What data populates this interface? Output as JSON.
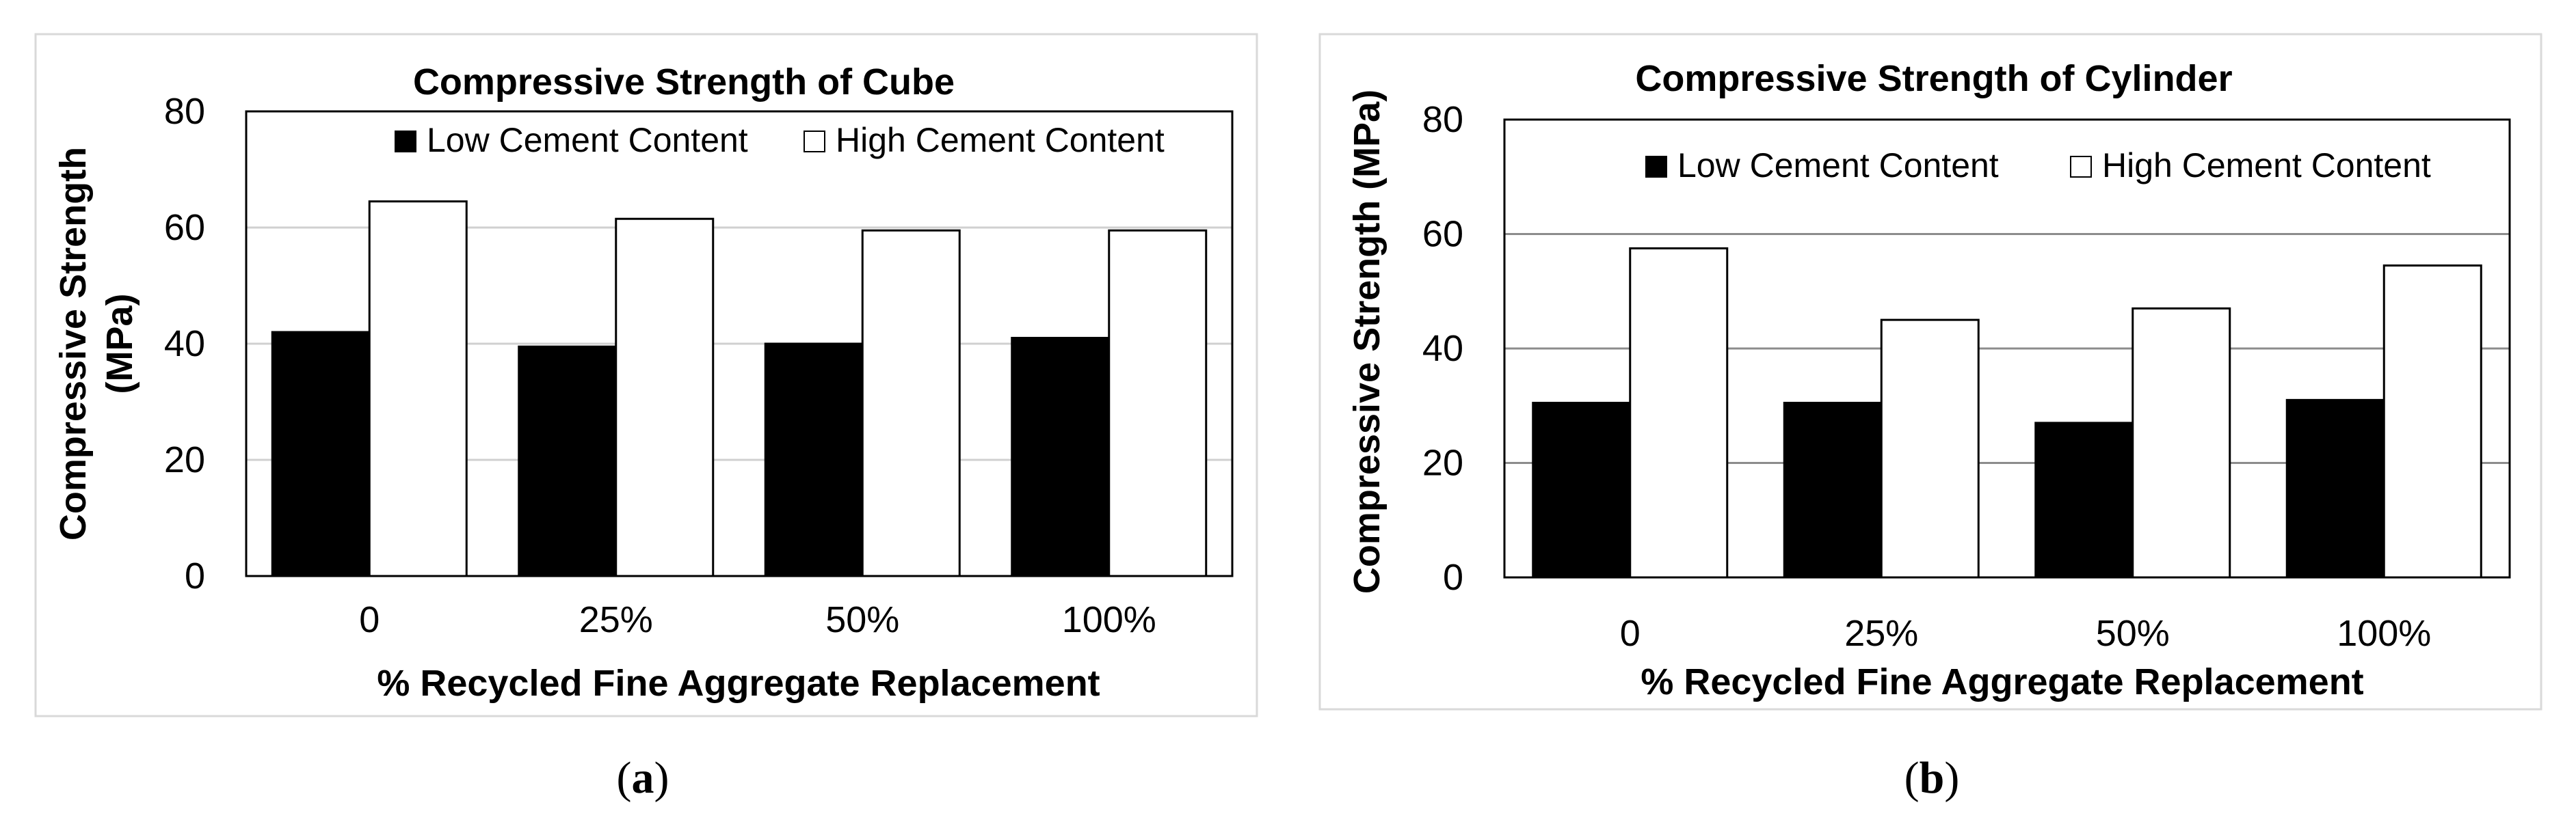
{
  "chart_data": [
    {
      "type": "bar",
      "title": "Compressive Strength  of Cube",
      "categories": [
        "0",
        "25%",
        "50%",
        "100%"
      ],
      "series": [
        {
          "name": "Low Cement Content",
          "color": "#000000",
          "values": [
            42,
            39.5,
            40,
            41
          ]
        },
        {
          "name": "High Cement Content",
          "color": "#ffffff",
          "values": [
            64.5,
            61.5,
            59.5,
            59.5
          ]
        }
      ],
      "xlabel": "% Recycled Fine Aggregate Replacement",
      "ylabel": [
        "Compressive Strength",
        "(MPa)"
      ],
      "ylim": [
        0,
        80
      ],
      "yticks": [
        "0",
        "20",
        "40",
        "60",
        "80"
      ],
      "grid": true,
      "legend_position": "top",
      "caption": {
        "open": "(",
        "letter": "a",
        "close": ")"
      }
    },
    {
      "type": "bar",
      "title": "Compressive Strength of Cylinder",
      "categories": [
        "0",
        "25%",
        "50%",
        "100%"
      ],
      "series": [
        {
          "name": "Low Cement Content",
          "color": "#000000",
          "values": [
            30.5,
            30.5,
            27,
            31
          ]
        },
        {
          "name": "High Cement Content",
          "color": "#ffffff",
          "values": [
            57.5,
            45,
            47,
            54.5
          ]
        }
      ],
      "xlabel": "% Recycled Fine Aggregate Replacement",
      "ylabel": [
        "Compressive Strength (MPa)"
      ],
      "ylim": [
        0,
        80
      ],
      "yticks": [
        "0",
        "20",
        "40",
        "60",
        "80"
      ],
      "grid": true,
      "legend_position": "top",
      "caption": {
        "open": "(",
        "letter": "b",
        "close": ")"
      }
    }
  ]
}
